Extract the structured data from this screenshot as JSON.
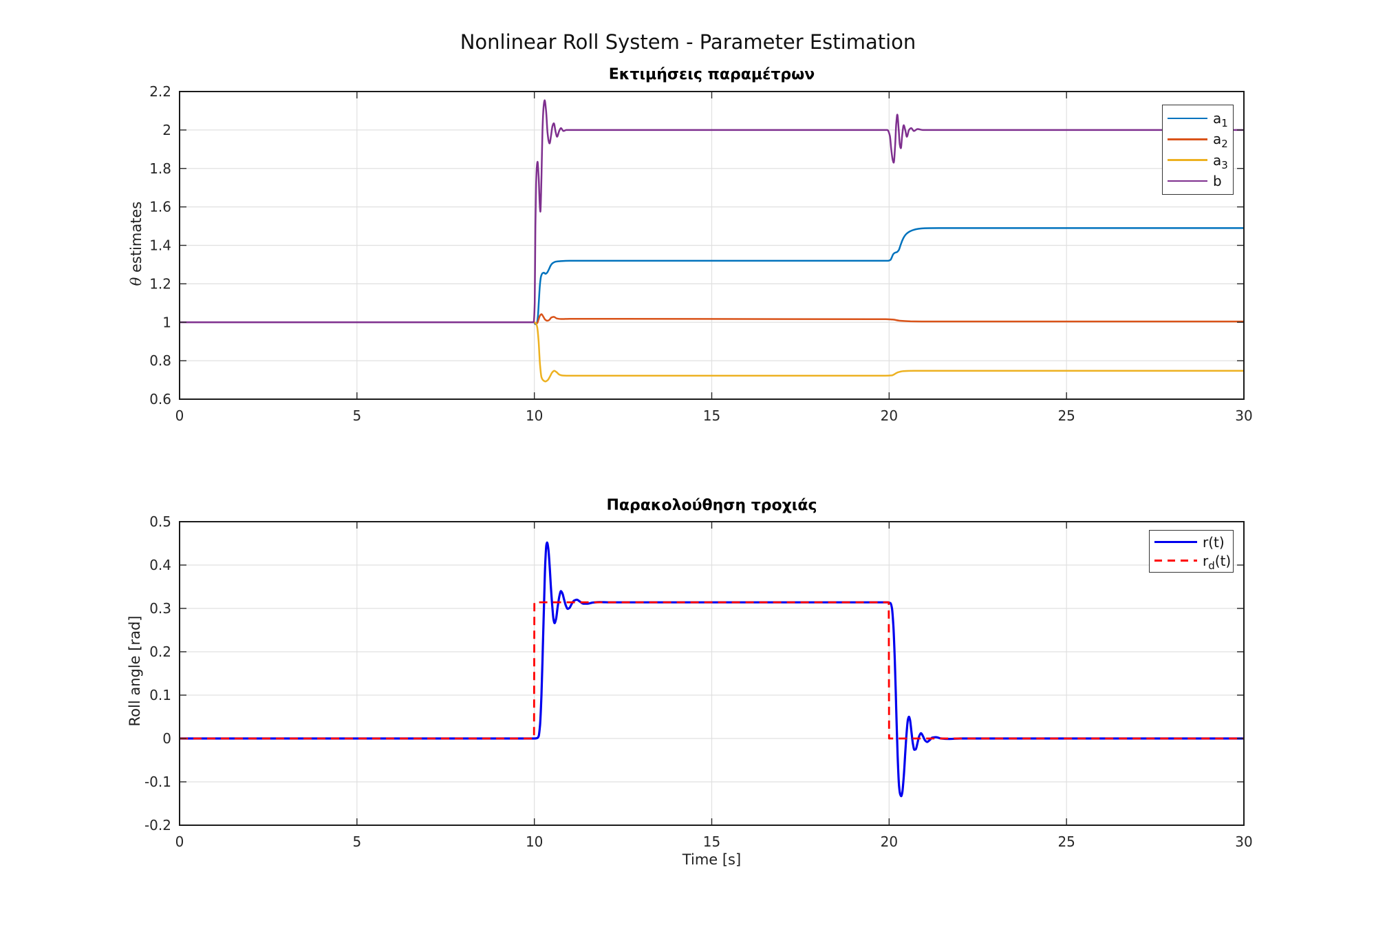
{
  "figure": {
    "title": "Nonlinear Roll System - Parameter Estimation",
    "background_color": "#ffffff",
    "axes_color": "#1a1a1a",
    "grid_color": "#e0e0e0",
    "tick_label_color": "#262626"
  },
  "chart_data": [
    {
      "type": "line",
      "title": "Εκτιμήσεις παραμέτρων",
      "xlabel": "",
      "ylabel": {
        "symbol": "θ",
        "text": " estimates"
      },
      "xlim": [
        0,
        30
      ],
      "ylim": [
        0.6,
        2.2
      ],
      "xticks": [
        0,
        5,
        10,
        15,
        20,
        25,
        30
      ],
      "yticks": [
        0.6,
        0.8,
        1,
        1.2,
        1.4,
        1.6,
        1.8,
        2,
        2.2
      ],
      "grid": true,
      "legend_position": "northeast",
      "series": [
        {
          "name": "a1",
          "label_base": "a",
          "label_sub": "1",
          "label_rest": "",
          "color": "#0072BD",
          "width": 2.5,
          "dash": null,
          "smooth": true,
          "points": [
            [
              0,
              1
            ],
            [
              9.99,
              1
            ],
            [
              10.03,
              0.99
            ],
            [
              10.07,
              0.995
            ],
            [
              10.1,
              1.03
            ],
            [
              10.13,
              1.12
            ],
            [
              10.16,
              1.2
            ],
            [
              10.19,
              1.24
            ],
            [
              10.23,
              1.255
            ],
            [
              10.27,
              1.258
            ],
            [
              10.31,
              1.252
            ],
            [
              10.36,
              1.258
            ],
            [
              10.41,
              1.275
            ],
            [
              10.46,
              1.295
            ],
            [
              10.52,
              1.308
            ],
            [
              10.6,
              1.315
            ],
            [
              10.75,
              1.318
            ],
            [
              11,
              1.32
            ],
            [
              19.97,
              1.32
            ],
            [
              20.04,
              1.325
            ],
            [
              20.08,
              1.34
            ],
            [
              20.12,
              1.355
            ],
            [
              20.17,
              1.362
            ],
            [
              20.22,
              1.365
            ],
            [
              20.27,
              1.375
            ],
            [
              20.32,
              1.4
            ],
            [
              20.37,
              1.425
            ],
            [
              20.43,
              1.447
            ],
            [
              20.5,
              1.462
            ],
            [
              20.58,
              1.472
            ],
            [
              20.68,
              1.48
            ],
            [
              20.82,
              1.486
            ],
            [
              21,
              1.489
            ],
            [
              21.4,
              1.49
            ],
            [
              30,
              1.49
            ]
          ]
        },
        {
          "name": "a2",
          "label_base": "a",
          "label_sub": "2",
          "label_rest": "",
          "color": "#D95319",
          "width": 2.5,
          "dash": null,
          "smooth": true,
          "points": [
            [
              0,
              1
            ],
            [
              10,
              1
            ],
            [
              10.04,
              0.993
            ],
            [
              10.08,
              0.995
            ],
            [
              10.12,
              1.015
            ],
            [
              10.16,
              1.035
            ],
            [
              10.2,
              1.042
            ],
            [
              10.25,
              1.03
            ],
            [
              10.3,
              1.015
            ],
            [
              10.36,
              1.008
            ],
            [
              10.42,
              1.012
            ],
            [
              10.48,
              1.025
            ],
            [
              10.55,
              1.028
            ],
            [
              10.63,
              1.02
            ],
            [
              10.75,
              1.017
            ],
            [
              11,
              1.018
            ],
            [
              19.9,
              1.016
            ],
            [
              20.1,
              1.014
            ],
            [
              20.3,
              1.008
            ],
            [
              20.6,
              1.005
            ],
            [
              21,
              1.004
            ],
            [
              30,
              1.004
            ]
          ]
        },
        {
          "name": "a3",
          "label_base": "a",
          "label_sub": "3",
          "label_rest": "",
          "color": "#EDB120",
          "width": 2.5,
          "dash": null,
          "smooth": true,
          "points": [
            [
              0,
              1
            ],
            [
              10,
              1
            ],
            [
              10.04,
              0.995
            ],
            [
              10.08,
              0.975
            ],
            [
              10.12,
              0.9
            ],
            [
              10.16,
              0.78
            ],
            [
              10.2,
              0.715
            ],
            [
              10.25,
              0.698
            ],
            [
              10.31,
              0.692
            ],
            [
              10.38,
              0.7
            ],
            [
              10.44,
              0.718
            ],
            [
              10.5,
              0.738
            ],
            [
              10.56,
              0.748
            ],
            [
              10.63,
              0.74
            ],
            [
              10.7,
              0.728
            ],
            [
              10.8,
              0.723
            ],
            [
              11,
              0.722
            ],
            [
              19.9,
              0.722
            ],
            [
              20.08,
              0.724
            ],
            [
              20.15,
              0.73
            ],
            [
              20.25,
              0.74
            ],
            [
              20.4,
              0.746
            ],
            [
              20.7,
              0.748
            ],
            [
              30,
              0.748
            ]
          ]
        },
        {
          "name": "b",
          "label_base": "b",
          "label_sub": "",
          "label_rest": "",
          "color": "#7E2F8E",
          "width": 2.5,
          "dash": null,
          "smooth": true,
          "points": [
            [
              0,
              1
            ],
            [
              9.98,
              1
            ],
            [
              10.01,
              1.1
            ],
            [
              10.03,
              1.5
            ],
            [
              10.05,
              1.72
            ],
            [
              10.07,
              1.81
            ],
            [
              10.09,
              1.835
            ],
            [
              10.12,
              1.76
            ],
            [
              10.15,
              1.62
            ],
            [
              10.17,
              1.575
            ],
            [
              10.2,
              1.75
            ],
            [
              10.23,
              2.0
            ],
            [
              10.26,
              2.12
            ],
            [
              10.29,
              2.155
            ],
            [
              10.33,
              2.1
            ],
            [
              10.37,
              1.99
            ],
            [
              10.4,
              1.945
            ],
            [
              10.43,
              1.93
            ],
            [
              10.47,
              1.97
            ],
            [
              10.51,
              2.02
            ],
            [
              10.55,
              2.035
            ],
            [
              10.6,
              1.99
            ],
            [
              10.64,
              1.965
            ],
            [
              10.7,
              1.995
            ],
            [
              10.75,
              2.01
            ],
            [
              10.82,
              1.995
            ],
            [
              10.9,
              2.0
            ],
            [
              11.2,
              2.0
            ],
            [
              19.95,
              2.0
            ],
            [
              20.02,
              1.97
            ],
            [
              20.06,
              1.9
            ],
            [
              20.1,
              1.845
            ],
            [
              20.13,
              1.83
            ],
            [
              20.17,
              1.92
            ],
            [
              20.2,
              2.03
            ],
            [
              20.23,
              2.08
            ],
            [
              20.27,
              2.0
            ],
            [
              20.3,
              1.925
            ],
            [
              20.33,
              1.905
            ],
            [
              20.37,
              1.975
            ],
            [
              20.41,
              2.025
            ],
            [
              20.46,
              1.995
            ],
            [
              20.5,
              1.965
            ],
            [
              20.56,
              2.0
            ],
            [
              20.62,
              2.01
            ],
            [
              20.7,
              1.995
            ],
            [
              20.8,
              2.005
            ],
            [
              20.95,
              2.0
            ],
            [
              30,
              2.0
            ]
          ]
        }
      ]
    },
    {
      "type": "line",
      "title": "Παρακολούθηση τροχιάς",
      "xlabel": "Time [s]",
      "ylabel": {
        "symbol": "",
        "text": "Roll angle [rad]"
      },
      "xlim": [
        0,
        30
      ],
      "ylim": [
        -0.2,
        0.5
      ],
      "xticks": [
        0,
        5,
        10,
        15,
        20,
        25,
        30
      ],
      "yticks": [
        -0.2,
        -0.1,
        0,
        0.1,
        0.2,
        0.3,
        0.4,
        0.5
      ],
      "grid": true,
      "legend_position": "northeast",
      "series": [
        {
          "name": "r",
          "label_base": "r",
          "label_sub": "",
          "label_rest": "(t)",
          "color": "#0000EE",
          "width": 3.2,
          "dash": null,
          "smooth": true,
          "points": [
            [
              0,
              0
            ],
            [
              10,
              0
            ],
            [
              10.08,
              0.001
            ],
            [
              10.12,
              0.005
            ],
            [
              10.16,
              0.03
            ],
            [
              10.2,
              0.1
            ],
            [
              10.24,
              0.21
            ],
            [
              10.28,
              0.33
            ],
            [
              10.31,
              0.41
            ],
            [
              10.34,
              0.447
            ],
            [
              10.36,
              0.452
            ],
            [
              10.39,
              0.44
            ],
            [
              10.43,
              0.4
            ],
            [
              10.47,
              0.345
            ],
            [
              10.51,
              0.3
            ],
            [
              10.54,
              0.275
            ],
            [
              10.57,
              0.266
            ],
            [
              10.61,
              0.275
            ],
            [
              10.66,
              0.305
            ],
            [
              10.71,
              0.33
            ],
            [
              10.75,
              0.34
            ],
            [
              10.79,
              0.335
            ],
            [
              10.84,
              0.32
            ],
            [
              10.89,
              0.306
            ],
            [
              10.94,
              0.299
            ],
            [
              10.99,
              0.301
            ],
            [
              11.05,
              0.31
            ],
            [
              11.12,
              0.318
            ],
            [
              11.2,
              0.32
            ],
            [
              11.28,
              0.316
            ],
            [
              11.38,
              0.311
            ],
            [
              11.5,
              0.311
            ],
            [
              11.65,
              0.3135
            ],
            [
              11.85,
              0.3145
            ],
            [
              12.2,
              0.314
            ],
            [
              19.96,
              0.314
            ],
            [
              20.04,
              0.312
            ],
            [
              20.08,
              0.3
            ],
            [
              20.12,
              0.26
            ],
            [
              20.16,
              0.18
            ],
            [
              20.2,
              0.07
            ],
            [
              20.24,
              -0.04
            ],
            [
              20.28,
              -0.11
            ],
            [
              20.31,
              -0.128
            ],
            [
              20.34,
              -0.133
            ],
            [
              20.37,
              -0.125
            ],
            [
              20.41,
              -0.09
            ],
            [
              20.45,
              -0.04
            ],
            [
              20.49,
              0.01
            ],
            [
              20.53,
              0.044
            ],
            [
              20.56,
              0.05
            ],
            [
              20.59,
              0.042
            ],
            [
              20.63,
              0.015
            ],
            [
              20.67,
              -0.012
            ],
            [
              20.71,
              -0.026
            ],
            [
              20.75,
              -0.025
            ],
            [
              20.8,
              -0.01
            ],
            [
              20.85,
              0.006
            ],
            [
              20.9,
              0.012
            ],
            [
              20.95,
              0.006
            ],
            [
              21.01,
              -0.004
            ],
            [
              21.07,
              -0.008
            ],
            [
              21.14,
              -0.004
            ],
            [
              21.22,
              0.002
            ],
            [
              21.32,
              0.003
            ],
            [
              21.47,
              0
            ],
            [
              21.7,
              -0.001
            ],
            [
              22,
              0
            ],
            [
              30,
              0
            ]
          ]
        },
        {
          "name": "rd",
          "label_base": "r",
          "label_sub": "d",
          "label_rest": "(t)",
          "color": "#FF0000",
          "width": 2.8,
          "dash": "12 8",
          "smooth": false,
          "points": [
            [
              0,
              0
            ],
            [
              9.99,
              0
            ],
            [
              10,
              0.3142
            ],
            [
              19.99,
              0.3142
            ],
            [
              20,
              0
            ],
            [
              30,
              0
            ]
          ]
        }
      ]
    }
  ]
}
